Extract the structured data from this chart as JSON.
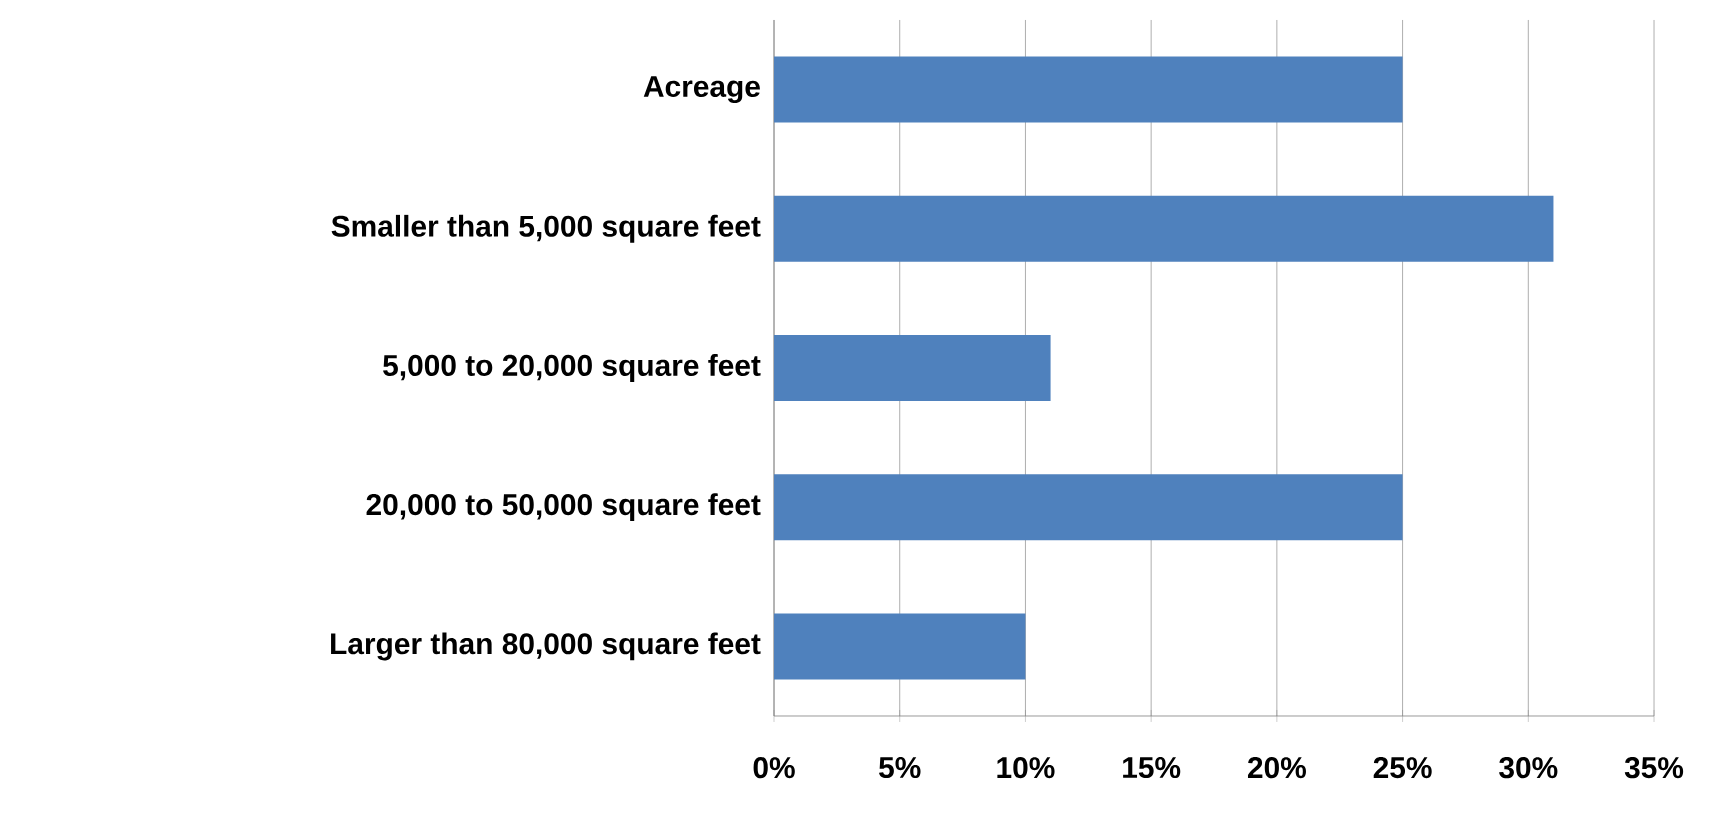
{
  "chart_data": {
    "type": "bar",
    "orientation": "horizontal",
    "categories": [
      "Acreage",
      "Smaller than 5,000 square feet",
      "5,000 to 20,000 square feet",
      "20,000 to 50,000 square feet",
      "Larger than 80,000 square feet"
    ],
    "values": [
      25,
      31,
      11,
      25,
      10
    ],
    "color": "#4f81bd",
    "xlim": [
      0,
      35
    ],
    "xticks": [
      {
        "value": 0,
        "label": "0%"
      },
      {
        "value": 5,
        "label": "5%"
      },
      {
        "value": 10,
        "label": "10%"
      },
      {
        "value": 15,
        "label": "15%"
      },
      {
        "value": 20,
        "label": "20%"
      },
      {
        "value": 25,
        "label": "25%"
      },
      {
        "value": 30,
        "label": "30%"
      },
      {
        "value": 35,
        "label": "35%"
      }
    ],
    "grid": "x"
  }
}
